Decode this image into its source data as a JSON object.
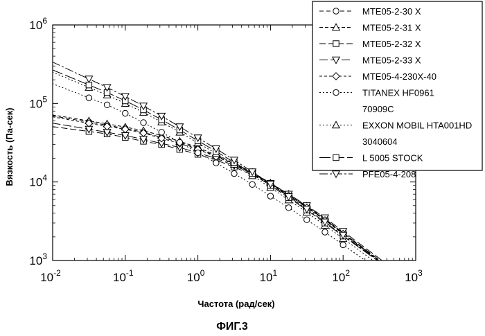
{
  "chart_data": {
    "type": "scatter",
    "title": "",
    "xlabel": "Частота (рад/сек)",
    "ylabel": "Вязкость (Па-сек)",
    "caption": "ФИГ.3",
    "x_scale": "log",
    "y_scale": "log",
    "xlim": [
      0.01,
      1000
    ],
    "ylim": [
      1000,
      1000000
    ],
    "grid": false,
    "legend_position": "top-right",
    "x_ticks": [
      {
        "value": 0.01,
        "base": "10",
        "exp": "-2"
      },
      {
        "value": 0.1,
        "base": "10",
        "exp": "-1"
      },
      {
        "value": 1,
        "base": "10",
        "exp": "0"
      },
      {
        "value": 10,
        "base": "10",
        "exp": "1"
      },
      {
        "value": 100,
        "base": "10",
        "exp": "2"
      },
      {
        "value": 1000,
        "base": "10",
        "exp": "3"
      }
    ],
    "y_ticks": [
      {
        "value": 1000,
        "base": "10",
        "exp": "3"
      },
      {
        "value": 10000,
        "base": "10",
        "exp": "4"
      },
      {
        "value": 100000,
        "base": "10",
        "exp": "5"
      },
      {
        "value": 1000000,
        "base": "10",
        "exp": "6"
      }
    ],
    "x": [
      0.0316,
      0.0562,
      0.1,
      0.178,
      0.316,
      0.562,
      1.0,
      1.78,
      3.16,
      5.62,
      10.0,
      17.8,
      31.6,
      56.2,
      100.0
    ],
    "series": [
      {
        "name": "MTE05-2-30  X",
        "marker": "circle",
        "dash": "6 4",
        "values": [
          58000,
          53000,
          48000,
          43000,
          37000,
          32000,
          26500,
          21500,
          17000,
          13000,
          9500,
          6800,
          4800,
          3300,
          2200
        ]
      },
      {
        "name": "MTE05-2-31  X",
        "marker": "triangle-up",
        "dash": "5 3",
        "values": [
          60000,
          55000,
          50000,
          45000,
          39000,
          33000,
          27500,
          22000,
          17500,
          13300,
          9700,
          7000,
          4900,
          3400,
          2250
        ]
      },
      {
        "name": "MTE05-2-32  X",
        "marker": "square",
        "dash": "9 4",
        "values": [
          44000,
          41000,
          37000,
          33000,
          30000,
          26000,
          22500,
          19000,
          15500,
          12300,
          9200,
          6700,
          4800,
          3350,
          2250
        ]
      },
      {
        "name": "MTE05-2-33  X",
        "marker": "triangle-down",
        "dash": "12 4",
        "values": [
          47000,
          43000,
          39000,
          35000,
          31000,
          27500,
          23500,
          20000,
          16200,
          12800,
          9600,
          7000,
          5000,
          3500,
          2350
        ]
      },
      {
        "name": "MTE05-4-230X-40",
        "marker": "diamond",
        "dash": "4 3",
        "values": [
          56000,
          51000,
          47000,
          42000,
          36000,
          31000,
          26000,
          21000,
          16800,
          12800,
          9300,
          6700,
          4700,
          3250,
          2180
        ]
      },
      {
        "name": "TITANEX HF0961 70909C",
        "marker": "circle",
        "dash": "2 3",
        "values": [
          118000,
          96000,
          75000,
          57000,
          43000,
          32000,
          23500,
          17500,
          12800,
          9300,
          6600,
          4700,
          3300,
          2300,
          1580
        ]
      },
      {
        "name": "EXXON MOBIL HTA001HD 3040604",
        "marker": "triangle-up",
        "dash": "2 3",
        "values": [
          160000,
          128000,
          100000,
          77000,
          58000,
          43000,
          31500,
          23000,
          16800,
          12000,
          8500,
          5900,
          4100,
          2800,
          1900
        ]
      },
      {
        "name": "L 5005 STOCK",
        "marker": "square",
        "dash": "16 4",
        "values": [
          172000,
          138000,
          108000,
          83000,
          62000,
          46000,
          33500,
          24500,
          17800,
          12800,
          9000,
          6300,
          4400,
          3000,
          2050
        ]
      },
      {
        "name": "PFE05-4-208",
        "marker": "triangle-down",
        "dash": "12 3 3 3",
        "values": [
          205000,
          160000,
          123000,
          93000,
          69000,
          50500,
          36500,
          26500,
          19000,
          13500,
          9400,
          6500,
          4500,
          3100,
          2100
        ]
      }
    ]
  }
}
